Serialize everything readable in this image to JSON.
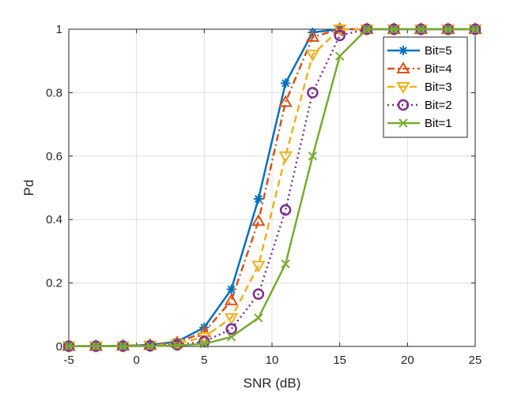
{
  "chart_data": {
    "type": "line",
    "title": "",
    "xlabel": "SNR (dB)",
    "ylabel": "Pd",
    "xlim": [
      -5,
      25
    ],
    "ylim": [
      0,
      1
    ],
    "xticks": [
      -5,
      0,
      5,
      10,
      15,
      20,
      25
    ],
    "yticks": [
      0,
      0.2,
      0.4,
      0.6,
      0.8,
      1
    ],
    "ytick_labels": [
      "0",
      "0.2",
      "0.4",
      "0.6",
      "0.8",
      "1"
    ],
    "grid": true,
    "legend_position": "top-right",
    "x": [
      -5,
      -3,
      -1,
      1,
      3,
      5,
      7,
      9,
      11,
      13,
      15,
      17,
      19,
      21,
      23,
      25
    ],
    "series": [
      {
        "name": "Bit=5",
        "color": "#0072BD",
        "marker": "asterisk",
        "dash": "solid",
        "values": [
          0.001,
          0.001,
          0.002,
          0.005,
          0.015,
          0.06,
          0.18,
          0.465,
          0.83,
          0.99,
          1,
          1,
          1,
          1,
          1,
          1
        ]
      },
      {
        "name": "Bit=4",
        "color": "#D95319",
        "marker": "triangle-up",
        "dash": "dashdot",
        "values": [
          0.001,
          0.001,
          0.002,
          0.004,
          0.012,
          0.045,
          0.145,
          0.395,
          0.77,
          0.975,
          1,
          1,
          1,
          1,
          1,
          1
        ]
      },
      {
        "name": "Bit=3",
        "color": "#EDB120",
        "marker": "triangle-down",
        "dash": "dashed",
        "values": [
          0.001,
          0.001,
          0.001,
          0.003,
          0.008,
          0.03,
          0.09,
          0.255,
          0.6,
          0.92,
          1,
          1,
          1,
          1,
          1,
          1
        ]
      },
      {
        "name": "Bit=2",
        "color": "#7E2F8E",
        "marker": "circle",
        "dash": "dotted",
        "values": [
          0.001,
          0.001,
          0.001,
          0.002,
          0.005,
          0.015,
          0.055,
          0.165,
          0.43,
          0.8,
          0.98,
          1,
          1,
          1,
          1,
          1
        ]
      },
      {
        "name": "Bit=1",
        "color": "#77AC30",
        "marker": "x",
        "dash": "solid",
        "values": [
          0.001,
          0.001,
          0.001,
          0.001,
          0.003,
          0.008,
          0.03,
          0.09,
          0.26,
          0.6,
          0.915,
          1,
          1,
          1,
          1,
          1
        ]
      }
    ]
  }
}
